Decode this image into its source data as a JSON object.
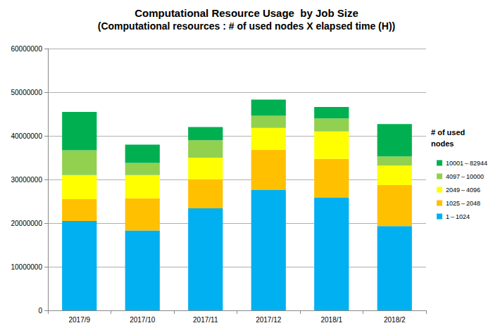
{
  "chart_data": {
    "type": "bar",
    "title": "Computational Resource Usage  by Job Size",
    "subtitle": "(Computational resources : # of used nodes X elapsed time (H))",
    "legend_title": "# of used nodes",
    "categories": [
      "2017/9",
      "2017/10",
      "2017/11",
      "2017/12",
      "2018/1",
      "2018/2"
    ],
    "series": [
      {
        "name": "1～1024",
        "color": "#00b0f0",
        "values": [
          20500000,
          18300000,
          23400000,
          27600000,
          25800000,
          19300000
        ]
      },
      {
        "name": "1025～2048",
        "color": "#ffc000",
        "values": [
          5000000,
          7400000,
          6700000,
          9200000,
          8900000,
          9400000
        ]
      },
      {
        "name": "2049～4096",
        "color": "#ffff00",
        "values": [
          5500000,
          5300000,
          4900000,
          5000000,
          6300000,
          4500000
        ]
      },
      {
        "name": "4097～10000",
        "color": "#92d050",
        "values": [
          5700000,
          2800000,
          4000000,
          2800000,
          3000000,
          2100000
        ]
      },
      {
        "name": "10001～82944",
        "color": "#00b050",
        "values": [
          8800000,
          4200000,
          3000000,
          3700000,
          2600000,
          7400000
        ]
      }
    ],
    "ylim": [
      0,
      60000000
    ],
    "yticks": [
      0,
      10000000,
      20000000,
      30000000,
      40000000,
      50000000,
      60000000
    ],
    "stacked": true,
    "grid": true,
    "legend": "right"
  }
}
